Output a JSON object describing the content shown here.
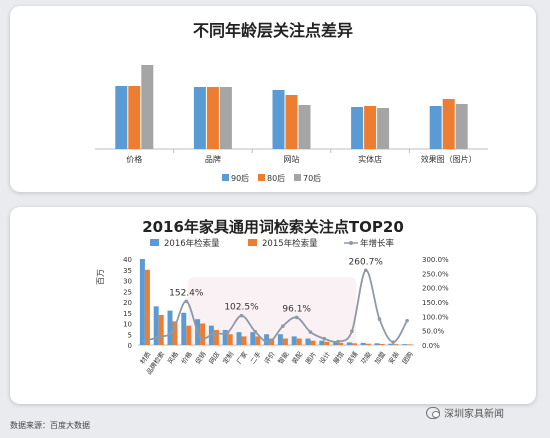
{
  "chart_data": [
    {
      "type": "bar",
      "title": "不同年龄层关注点差异",
      "categories": [
        "价格",
        "品牌",
        "网站",
        "实体店",
        "效果图（图片）"
      ],
      "series": [
        {
          "name": "90后",
          "color": "#5b9bd5",
          "values": [
            63,
            62,
            59,
            42,
            43
          ]
        },
        {
          "name": "80后",
          "color": "#ed7d31",
          "values": [
            63,
            62,
            54,
            43,
            50
          ]
        },
        {
          "name": "70后",
          "color": "#a5a5a5",
          "values": [
            84,
            62,
            44,
            41,
            45
          ]
        }
      ],
      "ylim": [
        0,
        100
      ],
      "legend": "bottom",
      "grid": false
    },
    {
      "type": "bar",
      "title": "2016年家具通用词检索关注点TOP20",
      "ylabel": "百万",
      "y_ticks": [
        "0",
        "5",
        "10",
        "15",
        "20",
        "25",
        "30",
        "35",
        "40"
      ],
      "ylim": [
        0,
        40
      ],
      "y2_ticks": [
        "0.0%",
        "50.0%",
        "100.0%",
        "150.0%",
        "200.0%",
        "250.0%",
        "300.0%"
      ],
      "y2lim": [
        0,
        300
      ],
      "categories": [
        "材质",
        "品牌检索",
        "风格",
        "价格",
        "促销",
        "网店",
        "定制",
        "厂家",
        "二手",
        "评价",
        "智能",
        "装配",
        "图片",
        "设计",
        "展馆",
        "店铺",
        "功能",
        "加盟",
        "安装",
        "团购"
      ],
      "series": [
        {
          "name": "2016年检索量",
          "kind": "bar",
          "color": "#5b9bd5",
          "values": [
            40,
            18,
            16,
            15,
            12,
            9,
            7,
            6,
            6,
            5,
            5,
            4,
            3,
            2,
            1.5,
            1.2,
            1,
            0.8,
            0.6,
            0.4
          ]
        },
        {
          "name": "2015年检索量",
          "kind": "bar",
          "color": "#ed7d31",
          "values": [
            35,
            14,
            11,
            9,
            10,
            7,
            5,
            4,
            4,
            3,
            3,
            3,
            2,
            1.5,
            1,
            0.8,
            0.6,
            0.5,
            0.4,
            0.3
          ]
        },
        {
          "name": "年增长率",
          "kind": "line",
          "color": "#8f9aa6",
          "axis": "right",
          "values": [
            14,
            28,
            47,
            152.4,
            28,
            40,
            44,
            102.5,
            46,
            10,
            66,
            96.1,
            45,
            22,
            12,
            48,
            260.7,
            90,
            10,
            85
          ]
        }
      ],
      "data_labels": [
        {
          "series": "年增长率",
          "index": 3,
          "text": "152.4%"
        },
        {
          "series": "年增长率",
          "index": 7,
          "text": "102.5%"
        },
        {
          "series": "年增长率",
          "index": 11,
          "text": "96.1%"
        },
        {
          "series": "年增长率",
          "index": 16,
          "text": "260.7%"
        }
      ],
      "legend": "top"
    }
  ],
  "footer": {
    "source": "数据来源：百度大数据",
    "watermark": "深圳家具新闻"
  }
}
